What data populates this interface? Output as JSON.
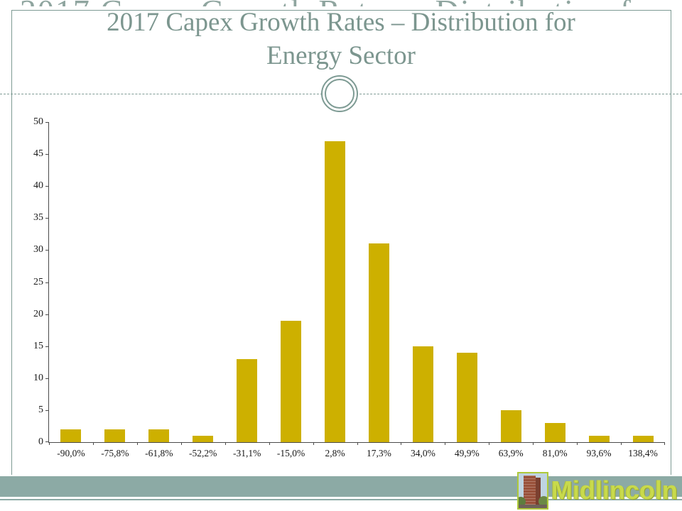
{
  "slide": {
    "title_line1": "2017 Capex Growth Rates – Distribution for",
    "title_line2": "Energy Sector"
  },
  "chart_data": {
    "type": "bar",
    "title": "2017 Capex Growth Rates – Distribution for Energy Sector",
    "categories": [
      "-90,0%",
      "-75,8%",
      "-61,8%",
      "-52,2%",
      "-31,1%",
      "-15,0%",
      "2,8%",
      "17,3%",
      "34,0%",
      "49,9%",
      "63,9%",
      "81,0%",
      "93,6%",
      "138,4%"
    ],
    "values": [
      2,
      2,
      2,
      1,
      13,
      19,
      47,
      31,
      15,
      14,
      5,
      3,
      1,
      1
    ],
    "xlabel": "",
    "ylabel": "",
    "ylim": [
      0,
      50
    ],
    "ytick_step": 5,
    "yticks": [
      0,
      5,
      10,
      15,
      20,
      25,
      30,
      35,
      40,
      45,
      50
    ],
    "grid": false,
    "legend": "none",
    "bar_color": "#cdb000"
  },
  "footer": {
    "logo_text": "Midlincoln",
    "logo_icon": "building-photo-icon"
  },
  "colors": {
    "title_text": "#7c968f",
    "frame_line": "#7e9b94",
    "bottom_band": "#8caaa5",
    "bar_fill": "#cdb000",
    "axis_line": "#4a4a4a",
    "logo_text": "#c8da4b"
  }
}
